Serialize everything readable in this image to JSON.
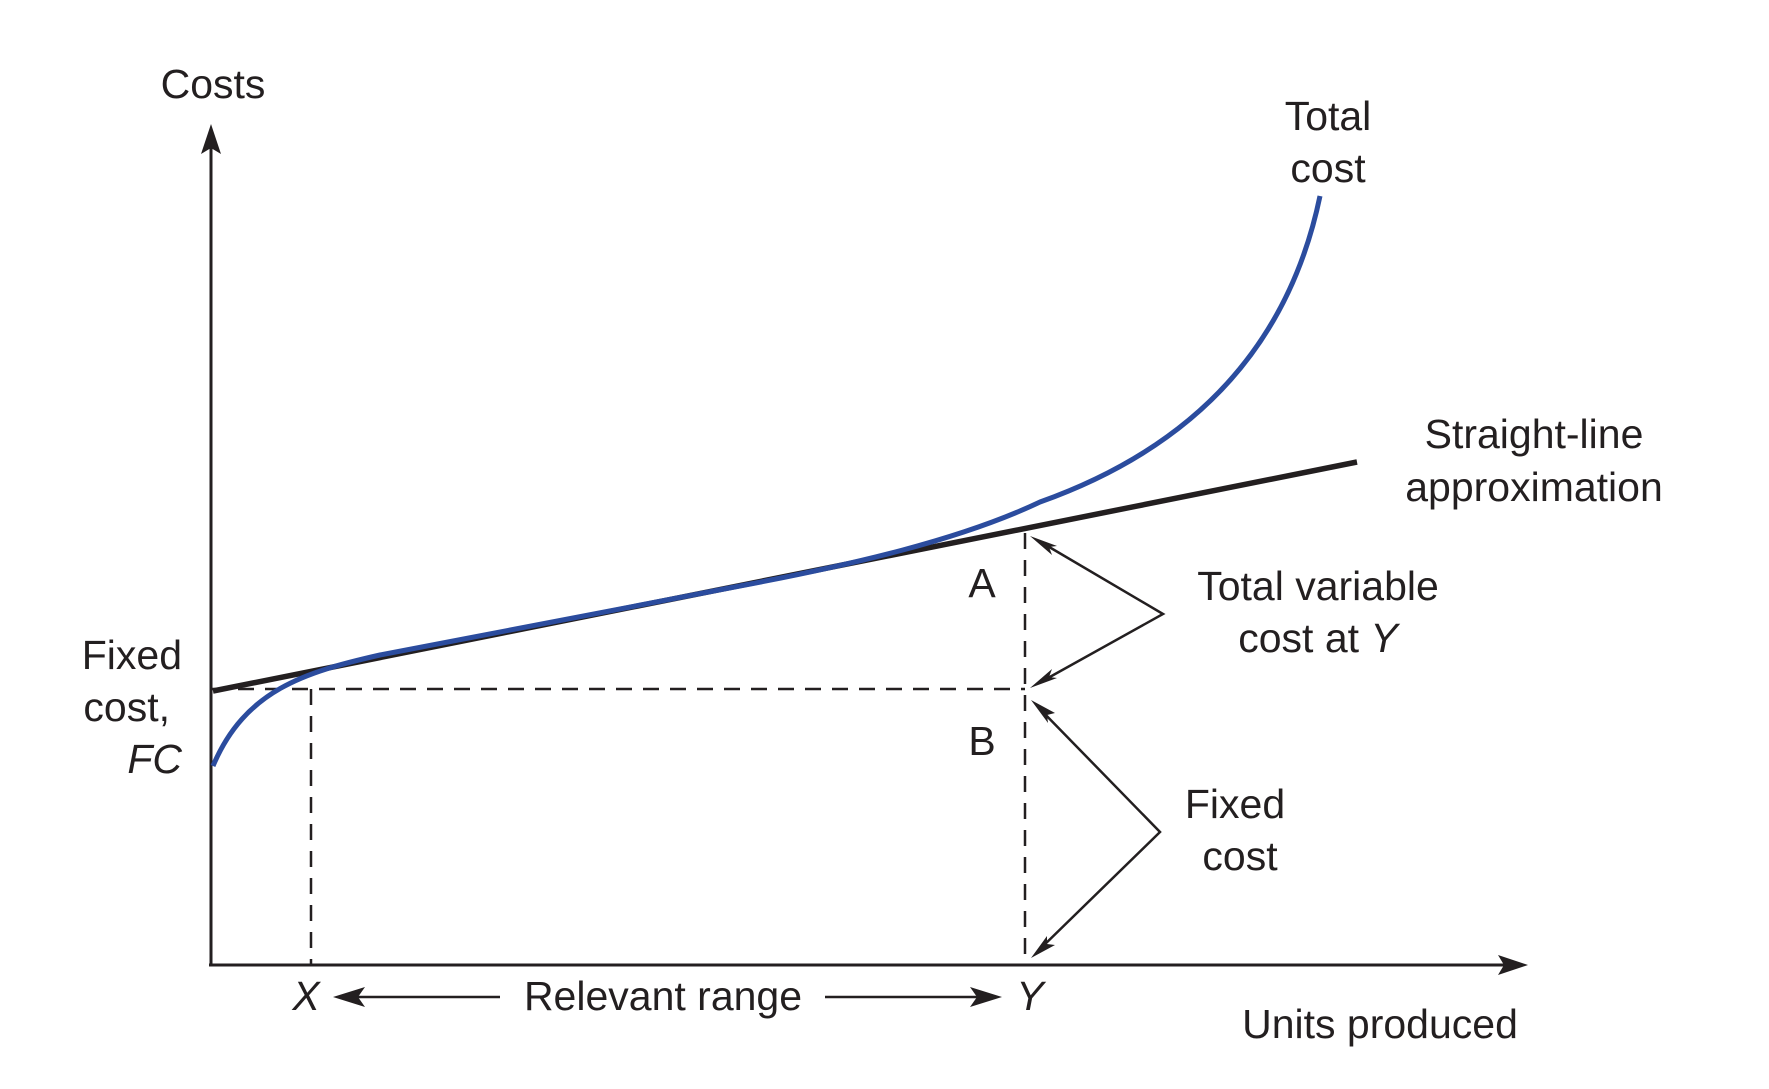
{
  "axes": {
    "y_label": "Costs",
    "x_label": "Units produced"
  },
  "labels": {
    "total_cost_line1": "Total",
    "total_cost_line2": "cost",
    "straight_line_line1": "Straight-line",
    "straight_line_line2": "approximation",
    "tvc_line1": "Total variable",
    "tvc_line2_prefix": "cost at ",
    "tvc_line2_var": "Y",
    "fixed_cost_right_line1": "Fixed",
    "fixed_cost_right_line2": "cost",
    "fixed_cost_left_line1": "Fixed",
    "fixed_cost_left_line2": "cost,",
    "fixed_cost_left_line3": "FC",
    "point_a": "A",
    "point_b": "B",
    "x_marker": "X",
    "y_marker": "Y",
    "relevant_range": "Relevant range"
  },
  "colors": {
    "total_cost_curve": "#2b4c9e",
    "lines_and_text": "#231f20"
  }
}
